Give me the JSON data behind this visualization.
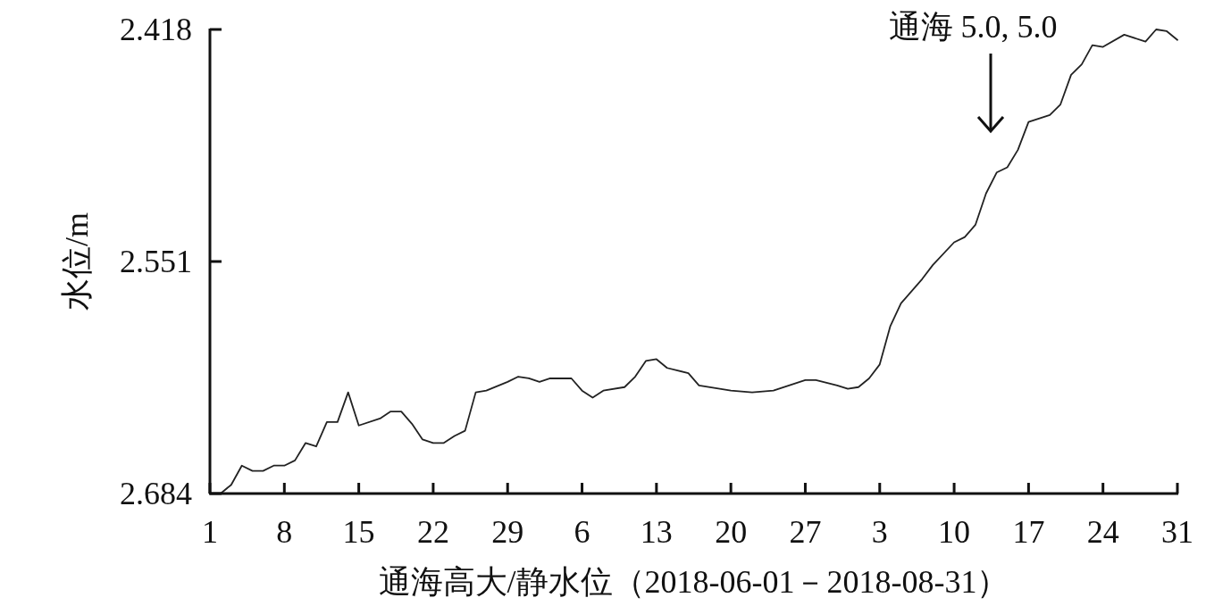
{
  "chart_data": {
    "type": "line",
    "xlabel": "通海高大/静水位（2018-06-01－2018-08-31）",
    "ylabel": "水位/m",
    "x": [
      "2018-06-02",
      "2018-06-03",
      "2018-06-04",
      "2018-06-05",
      "2018-06-06",
      "2018-06-07",
      "2018-06-08",
      "2018-06-09",
      "2018-06-10",
      "2018-06-11",
      "2018-06-12",
      "2018-06-13",
      "2018-06-14",
      "2018-06-15",
      "2018-06-17",
      "2018-06-18",
      "2018-06-19",
      "2018-06-20",
      "2018-06-21",
      "2018-06-22",
      "2018-06-23",
      "2018-06-24",
      "2018-06-25",
      "2018-06-26",
      "2018-06-27",
      "2018-06-29",
      "2018-06-30",
      "2018-07-01",
      "2018-07-02",
      "2018-07-03",
      "2018-07-05",
      "2018-07-06",
      "2018-07-07",
      "2018-07-08",
      "2018-07-10",
      "2018-07-11",
      "2018-07-12",
      "2018-07-13",
      "2018-07-14",
      "2018-07-16",
      "2018-07-17",
      "2018-07-20",
      "2018-07-22",
      "2018-07-24",
      "2018-07-27",
      "2018-07-28",
      "2018-07-30",
      "2018-07-31",
      "2018-08-01",
      "2018-08-02",
      "2018-08-03",
      "2018-08-04",
      "2018-08-05",
      "2018-08-07",
      "2018-08-08",
      "2018-08-10",
      "2018-08-11",
      "2018-08-12",
      "2018-08-13",
      "2018-08-14",
      "2018-08-15",
      "2018-08-16",
      "2018-08-17",
      "2018-08-19",
      "2018-08-20",
      "2018-08-21",
      "2018-08-22",
      "2018-08-23",
      "2018-08-24",
      "2018-08-26",
      "2018-08-28",
      "2018-08-29",
      "2018-08-30",
      "2018-08-31"
    ],
    "values": [
      2.684,
      2.679,
      2.668,
      2.671,
      2.671,
      2.668,
      2.668,
      2.665,
      2.655,
      2.657,
      2.643,
      2.643,
      2.626,
      2.645,
      2.641,
      2.637,
      2.637,
      2.644,
      2.653,
      2.655,
      2.655,
      2.651,
      2.648,
      2.626,
      2.625,
      2.62,
      2.617,
      2.618,
      2.62,
      2.618,
      2.618,
      2.625,
      2.629,
      2.625,
      2.623,
      2.617,
      2.608,
      2.607,
      2.612,
      2.615,
      2.622,
      2.625,
      2.626,
      2.625,
      2.619,
      2.619,
      2.622,
      2.624,
      2.623,
      2.618,
      2.61,
      2.588,
      2.575,
      2.561,
      2.553,
      2.54,
      2.537,
      2.53,
      2.512,
      2.5,
      2.497,
      2.487,
      2.471,
      2.467,
      2.461,
      2.444,
      2.438,
      2.427,
      2.428,
      2.421,
      2.425,
      2.418,
      2.419,
      2.424
    ],
    "color": "#222222",
    "xlim": [
      "2018-06-01",
      "2018-08-31"
    ],
    "xticks": [
      {
        "value": "2018-06-01",
        "label": "1"
      },
      {
        "value": "2018-06-08",
        "label": "8"
      },
      {
        "value": "2018-06-15",
        "label": "15"
      },
      {
        "value": "2018-06-22",
        "label": "22"
      },
      {
        "value": "2018-06-29",
        "label": "29"
      },
      {
        "value": "2018-07-06",
        "label": "6"
      },
      {
        "value": "2018-07-13",
        "label": "13"
      },
      {
        "value": "2018-07-20",
        "label": "20"
      },
      {
        "value": "2018-07-27",
        "label": "27"
      },
      {
        "value": "2018-08-03",
        "label": "3"
      },
      {
        "value": "2018-08-10",
        "label": "10"
      },
      {
        "value": "2018-08-17",
        "label": "17"
      },
      {
        "value": "2018-08-24",
        "label": "24"
      },
      {
        "value": "2018-08-31",
        "label": "31"
      }
    ],
    "ylim": [
      2.684,
      2.418
    ],
    "yticks": [
      2.418,
      2.551,
      2.684
    ],
    "annotations": [
      "通海 5.0, 5.0"
    ]
  }
}
